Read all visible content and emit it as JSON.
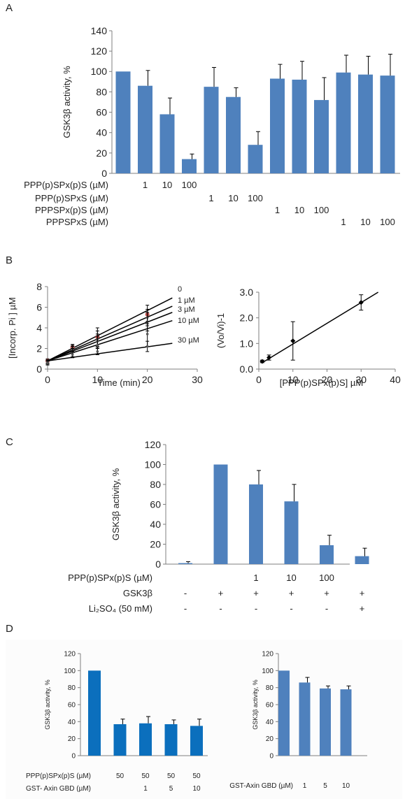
{
  "panel_labels": [
    "A",
    "B",
    "C",
    "D"
  ],
  "colors": {
    "bar": "#4f81bd",
    "bar_d_left": "#0b6fbd",
    "axis": "#7f7f7f",
    "pt_red": "#c0504d"
  },
  "chart_data": [
    {
      "id": "A",
      "type": "bar",
      "ylabel": "GSK3β activity, %",
      "ylim": [
        0,
        140
      ],
      "yticks": [
        0,
        20,
        40,
        60,
        80,
        100,
        120,
        140
      ],
      "values": [
        100,
        86,
        58,
        14,
        85,
        75,
        28,
        93,
        92,
        72,
        99,
        97,
        96
      ],
      "errors": [
        0,
        15,
        16,
        5,
        19,
        9,
        13,
        14,
        18,
        22,
        17,
        18,
        21
      ],
      "condition_rows": [
        {
          "label": "PPP(p)SPx(p)S (µM)",
          "cells": [
            "",
            "1",
            "10",
            "100",
            "",
            "",
            "",
            "",
            "",
            "",
            "",
            "",
            ""
          ]
        },
        {
          "label": "PPP(p)SPxS (µM)",
          "cells": [
            "",
            "",
            "",
            "",
            "1",
            "10",
            "100",
            "",
            "",
            "",
            "",
            "",
            ""
          ]
        },
        {
          "label": "PPPSPx(p)S (µM)",
          "cells": [
            "",
            "",
            "",
            "",
            "",
            "",
            "",
            "1",
            "10",
            "100",
            "",
            "",
            ""
          ]
        },
        {
          "label": "PPPSPxS (µM)",
          "cells": [
            "",
            "",
            "",
            "",
            "",
            "",
            "",
            "",
            "",
            "",
            "1",
            "10",
            "100"
          ]
        }
      ]
    },
    {
      "id": "B-left",
      "type": "line",
      "xlabel": "Time (min)",
      "ylabel": "[Incorp. Pi ] µM",
      "xlim": [
        0,
        30
      ],
      "ylim": [
        0,
        8
      ],
      "xticks": [
        0,
        10,
        20,
        30
      ],
      "yticks": [
        0,
        2,
        4,
        6,
        8
      ],
      "x": [
        0,
        5,
        10,
        20
      ],
      "series": [
        {
          "name": "0",
          "values": [
            0.8,
            2.1,
            3.1,
            5.3
          ],
          "errors": [
            0.2,
            0.3,
            0.9,
            0.9
          ],
          "fit": [
            0.8,
            6.9
          ]
        },
        {
          "name": "1 µM",
          "values": [
            0.7,
            2.0,
            2.9,
            5.0
          ],
          "errors": [
            0.2,
            0.3,
            0.8,
            0.8
          ],
          "fit": [
            0.8,
            6.1
          ]
        },
        {
          "name": "3 µM",
          "values": [
            0.7,
            1.9,
            2.7,
            4.6
          ],
          "errors": [
            0.2,
            0.3,
            0.7,
            0.9
          ],
          "fit": [
            0.8,
            5.5
          ]
        },
        {
          "name": "10 µM",
          "values": [
            0.6,
            1.6,
            2.3,
            3.4
          ],
          "errors": [
            0.2,
            0.4,
            0.9,
            1.2
          ],
          "fit": [
            0.8,
            4.7
          ]
        },
        {
          "name": "30 µM",
          "values": [
            0.6,
            1.4,
            1.7,
            2.2
          ],
          "errors": [
            0.2,
            0.3,
            0.3,
            0.5
          ],
          "fit": [
            0.8,
            2.5
          ]
        }
      ]
    },
    {
      "id": "B-right",
      "type": "scatter",
      "xlabel": "[PPP(p)SPx(p)S] µM",
      "ylabel": "(Vo/Vi)-1",
      "xlim": [
        0,
        40
      ],
      "ylim": [
        0,
        3
      ],
      "xticks": [
        0,
        10,
        20,
        30,
        40
      ],
      "yticks": [
        "0.0",
        "1.0",
        "2.0",
        "3.0"
      ],
      "x": [
        1,
        3,
        10,
        30
      ],
      "y": [
        0.3,
        0.45,
        1.1,
        2.6
      ],
      "errors": [
        0.05,
        0.1,
        0.75,
        0.3
      ],
      "fit": {
        "x": [
          1,
          35
        ],
        "y": [
          0.25,
          3.0
        ]
      }
    },
    {
      "id": "C",
      "type": "bar",
      "ylabel": "GSK3β activity,  %",
      "ylim": [
        0,
        120
      ],
      "yticks": [
        0,
        20,
        40,
        60,
        80,
        100,
        120
      ],
      "values": [
        1,
        100,
        80,
        63,
        19,
        8
      ],
      "errors": [
        1.5,
        0,
        14,
        17,
        10,
        8
      ],
      "condition_rows": [
        {
          "label": "PPP(p)SPx(p)S (µM)",
          "cells": [
            "",
            "",
            "1",
            "10",
            "100",
            ""
          ]
        },
        {
          "label": "GSK3β",
          "cells": [
            "-",
            "+",
            "+",
            "+",
            "+",
            "+"
          ]
        },
        {
          "label": "Li₂SO₄ (50 mM)",
          "cells": [
            "-",
            "-",
            "-",
            "-",
            "-",
            "+"
          ]
        }
      ]
    },
    {
      "id": "D-left",
      "type": "bar",
      "ylabel": "GSK3β activity, %",
      "ylim": [
        0,
        120
      ],
      "yticks": [
        0,
        20,
        40,
        60,
        80,
        100,
        120
      ],
      "values": [
        100,
        37,
        38,
        37,
        35
      ],
      "errors": [
        0,
        6,
        8,
        5,
        8
      ],
      "condition_rows": [
        {
          "label": "PPP(p)SPx(p)S (µM)",
          "cells": [
            "",
            "50",
            "50",
            "50",
            "50"
          ]
        },
        {
          "label": "GST- Axin GBD (µM)",
          "cells": [
            "",
            "",
            "1",
            "5",
            "10"
          ]
        }
      ]
    },
    {
      "id": "D-right",
      "type": "bar",
      "ylabel": "GSK3β activity, %",
      "ylim": [
        0,
        120
      ],
      "yticks": [
        0,
        20,
        40,
        60,
        80,
        100,
        120
      ],
      "values": [
        100,
        86,
        79,
        78
      ],
      "errors": [
        0,
        6,
        3,
        4
      ],
      "condition_rows": [
        {
          "label": "GST-Axin GBD (µM)",
          "cells": [
            "",
            "1",
            "5",
            "10"
          ]
        }
      ]
    }
  ]
}
